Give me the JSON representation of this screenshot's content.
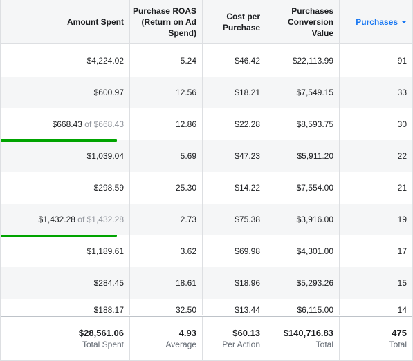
{
  "columns": [
    {
      "label": "Amount Spent"
    },
    {
      "label": "Purchase ROAS (Return on Ad Spend)"
    },
    {
      "label": "Cost per Purchase"
    },
    {
      "label": "Purchases Conversion Value"
    },
    {
      "label": "Purchases",
      "sorted": true
    }
  ],
  "rows": [
    {
      "spent": "$4,224.02",
      "roas": "5.24",
      "cost": "$46.42",
      "value": "$22,113.99",
      "purchases": "91"
    },
    {
      "spent": "$600.97",
      "roas": "12.56",
      "cost": "$18.21",
      "value": "$7,549.15",
      "purchases": "33"
    },
    {
      "spent": "$668.43",
      "spent_limit": "of $668.43",
      "roas": "12.86",
      "cost": "$22.28",
      "value": "$8,593.75",
      "purchases": "30"
    },
    {
      "spent": "$1,039.04",
      "roas": "5.69",
      "cost": "$47.23",
      "value": "$5,911.20",
      "purchases": "22"
    },
    {
      "spent": "$298.59",
      "roas": "25.30",
      "cost": "$14.22",
      "value": "$7,554.00",
      "purchases": "21"
    },
    {
      "spent": "$1,432.28",
      "spent_limit": "of $1,432.28",
      "roas": "2.73",
      "cost": "$75.38",
      "value": "$3,916.00",
      "purchases": "19"
    },
    {
      "spent": "$1,189.61",
      "roas": "3.62",
      "cost": "$69.98",
      "value": "$4,301.00",
      "purchases": "17"
    },
    {
      "spent": "$284.45",
      "roas": "18.61",
      "cost": "$18.96",
      "value": "$5,293.26",
      "purchases": "15"
    },
    {
      "spent": "$188.17",
      "roas": "32.50",
      "cost": "$13.44",
      "value": "$6,115.00",
      "purchases": "14"
    }
  ],
  "totals": {
    "spent": {
      "value": "$28,561.06",
      "label": "Total Spent"
    },
    "roas": {
      "value": "4.93",
      "label": "Average"
    },
    "cost": {
      "value": "$60.13",
      "label": "Per Action"
    },
    "value": {
      "value": "$140,716.83",
      "label": "Total"
    },
    "purchases": {
      "value": "475",
      "label": "Total"
    }
  },
  "colors": {
    "accent": "#1877f2",
    "progress": "#00a400",
    "stripe": "#f5f6f7"
  }
}
